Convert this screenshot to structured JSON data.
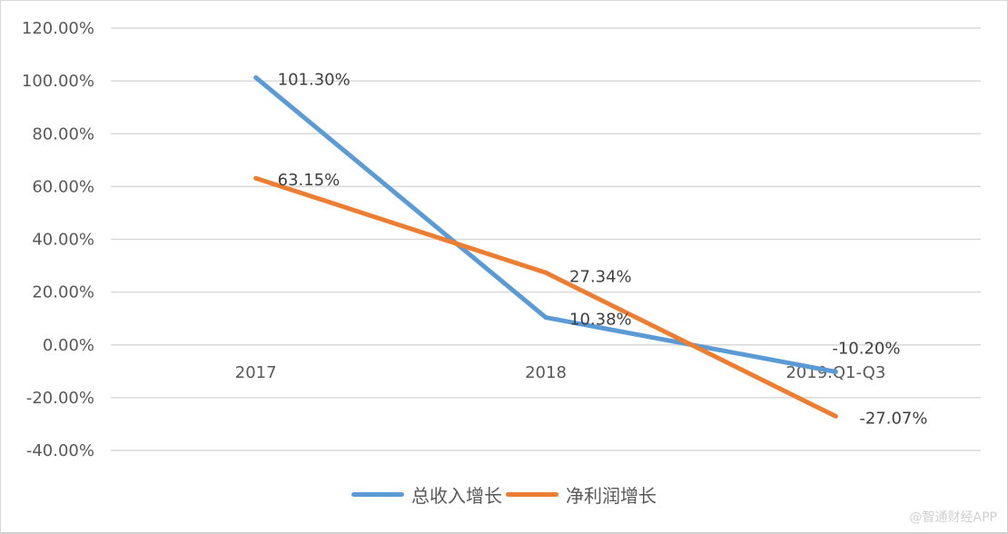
{
  "chart_data": {
    "type": "line",
    "title": "",
    "xlabel": "",
    "ylabel": "",
    "categories": [
      "2017",
      "2018",
      "2019.Q1-Q3"
    ],
    "series": [
      {
        "name": "总收入增长",
        "color": "#5b9bd5",
        "values": [
          101.3,
          10.38,
          -10.2
        ],
        "labels": [
          "101.30%",
          "10.38%",
          "-10.20%"
        ]
      },
      {
        "name": "净利润增长",
        "color": "#ed7d31",
        "values": [
          63.15,
          27.34,
          -27.07
        ],
        "labels": [
          "63.15%",
          "27.34%",
          "-27.07%"
        ]
      }
    ],
    "ylim": [
      -40,
      120
    ],
    "yticks": [
      "120.00%",
      "100.00%",
      "80.00%",
      "60.00%",
      "40.00%",
      "20.00%",
      "0.00%",
      "-20.00%",
      "-40.00%"
    ],
    "grid": true,
    "legend_position": "bottom"
  },
  "legend": {
    "items": [
      {
        "label": "总收入增长",
        "color": "#5b9bd5"
      },
      {
        "label": "净利润增长",
        "color": "#ed7d31"
      }
    ]
  },
  "watermark": "@智通财经APP"
}
